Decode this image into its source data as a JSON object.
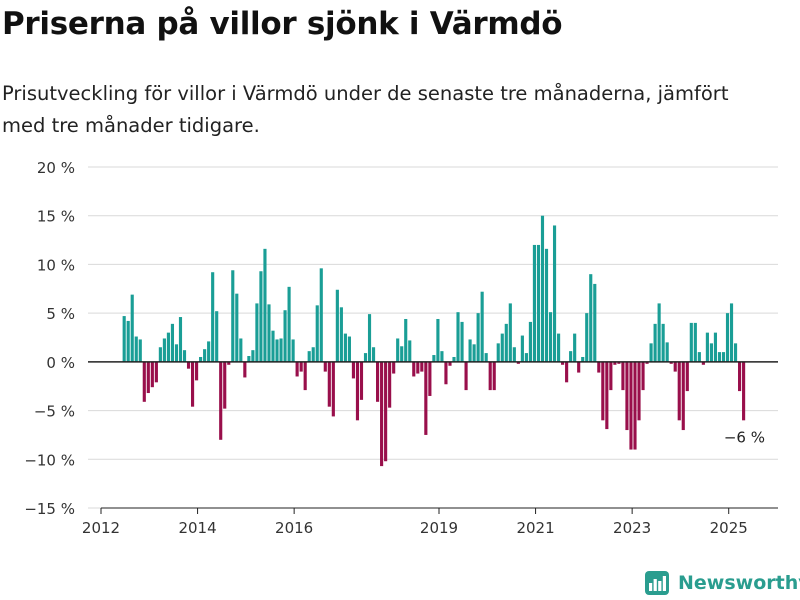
{
  "title": "Priserna på villor sjönk i Värmdö",
  "subtitle": "Prisutveckling för villor i Värmdö under de senaste tre månaderna, jämfört med tre månader tidigare.",
  "brand": {
    "name": "Newsworthy",
    "icon": "bar-chart-logo-icon"
  },
  "colors": {
    "positive": "#1a9e96",
    "negative": "#990f4b",
    "axis": "#222222",
    "grid": "#d9d9d9",
    "brand": "#2a9d8f"
  },
  "chart_data": {
    "type": "bar",
    "ylabel": "",
    "xlabel": "",
    "ylim": [
      -15,
      20
    ],
    "y_ticks": [
      20,
      15,
      10,
      5,
      0,
      -5,
      -10,
      -15
    ],
    "y_tick_labels": [
      "20 %",
      "15 %",
      "10 %",
      "5 %",
      "0 %",
      "−5 %",
      "−10 %",
      "−15 %"
    ],
    "x_ticks": [
      2012,
      2014,
      2016,
      2019,
      2021,
      2023,
      2025
    ],
    "x_range": [
      2012.0,
      2026.0
    ],
    "start": 2012.48,
    "step": 0.0833,
    "grid": true,
    "annotation": {
      "label": "−6 %",
      "value": -6
    },
    "values": [
      4.7,
      4.2,
      6.9,
      2.6,
      2.3,
      -4.1,
      -3.2,
      -2.6,
      -2.1,
      1.5,
      2.4,
      3,
      3.9,
      1.8,
      4.6,
      1.2,
      -0.7,
      -4.6,
      -1.9,
      0.5,
      1.3,
      2.1,
      9.2,
      5.2,
      -8,
      -4.8,
      -0.3,
      9.4,
      7,
      2.4,
      -1.6,
      0.6,
      1.2,
      6,
      9.3,
      11.6,
      5.9,
      3.2,
      2.3,
      2.4,
      5.3,
      7.7,
      2.3,
      -1.5,
      -1,
      -2.9,
      1.1,
      1.5,
      5.8,
      9.6,
      -1,
      -4.6,
      -5.6,
      7.4,
      5.6,
      2.9,
      2.6,
      -1.7,
      -6,
      -3.9,
      0.9,
      4.9,
      1.5,
      -4.1,
      -10.7,
      -10.2,
      -4.7,
      -1.2,
      2.4,
      1.6,
      4.4,
      2.2,
      -1.5,
      -1.2,
      -1,
      -7.5,
      -3.5,
      0.7,
      4.4,
      1.1,
      -2.3,
      -0.4,
      0.5,
      5.1,
      4.1,
      -2.9,
      2.3,
      1.8,
      5,
      7.2,
      0.9,
      -2.9,
      -2.9,
      1.9,
      2.9,
      3.9,
      6,
      1.5,
      -0.2,
      2.7,
      0.9,
      4.1,
      12,
      12,
      15,
      11.6,
      5.1,
      14,
      2.9,
      -0.3,
      -2.1,
      1.1,
      2.9,
      -1.1,
      0.5,
      5,
      9,
      8,
      -1.1,
      -6,
      -6.9,
      -2.9,
      -0.3,
      -0.2,
      -2.9,
      -7,
      -9,
      -9,
      -6,
      -2.9,
      -0.2,
      1.9,
      3.9,
      6,
      3.9,
      2,
      -0.2,
      -1,
      -6,
      -7,
      -3,
      4,
      4,
      1,
      -0.3,
      3,
      1.9,
      3,
      1,
      1,
      5,
      6,
      1.9,
      -3,
      -6
    ]
  }
}
